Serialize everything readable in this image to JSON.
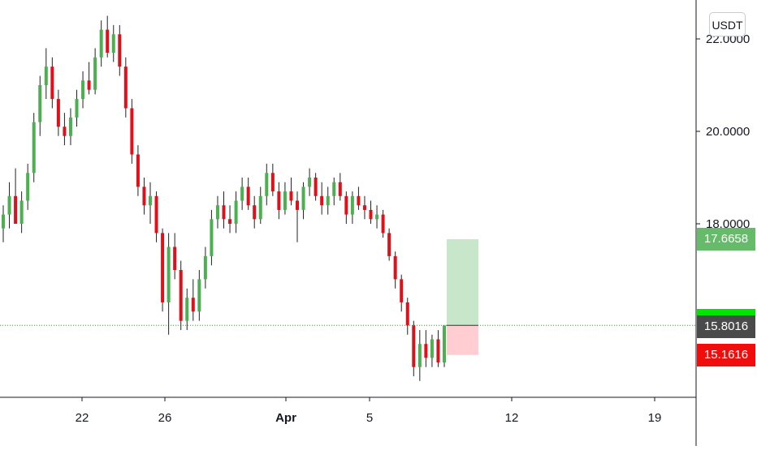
{
  "unit_badge": "USDT",
  "price_labels": {
    "target": "17.6658",
    "current": "15.8016",
    "stop": "15.1616"
  },
  "colors": {
    "up": "#26a69a",
    "down": "#ef5350",
    "up_candle": "#4caf50",
    "down_candle": "#e0101a",
    "target_zone": "#c8e6c9",
    "stop_zone": "#ffcdd2",
    "target_label_bg": "#66bb6a",
    "current_label_bg": "#4a4a4a",
    "stop_label_bg": "#f20d0d",
    "current_flag": "#00e600"
  },
  "chart_data": {
    "type": "candlestick",
    "ylabel": "",
    "y_ticks": [
      "22.0000",
      "20.0000",
      "18.0000"
    ],
    "x_ticks": [
      "22",
      "26",
      "Apr",
      "5",
      "12",
      "19"
    ],
    "current_price_line": 15.8016,
    "position": {
      "entry": 15.8016,
      "target": 17.6658,
      "stop": 15.1616
    },
    "ohlc_approx": [
      [
        17.9,
        18.4,
        17.6,
        18.2
      ],
      [
        18.2,
        18.9,
        17.9,
        18.6
      ],
      [
        18.6,
        19.2,
        18.3,
        18.0
      ],
      [
        18.0,
        18.7,
        17.8,
        18.5
      ],
      [
        18.5,
        19.3,
        18.3,
        19.1
      ],
      [
        19.1,
        20.4,
        18.9,
        20.2
      ],
      [
        20.2,
        21.2,
        19.9,
        21.0
      ],
      [
        21.0,
        21.8,
        20.7,
        21.4
      ],
      [
        21.4,
        21.6,
        20.5,
        20.7
      ],
      [
        20.7,
        20.9,
        19.9,
        20.1
      ],
      [
        20.1,
        20.4,
        19.7,
        19.9
      ],
      [
        19.9,
        20.5,
        19.7,
        20.3
      ],
      [
        20.3,
        20.9,
        20.1,
        20.7
      ],
      [
        20.7,
        21.3,
        20.5,
        21.1
      ],
      [
        21.1,
        21.5,
        20.8,
        20.9
      ],
      [
        20.9,
        21.8,
        20.8,
        21.6
      ],
      [
        21.6,
        22.4,
        21.4,
        22.2
      ],
      [
        22.2,
        22.5,
        21.6,
        21.7
      ],
      [
        21.7,
        22.3,
        21.5,
        22.1
      ],
      [
        22.1,
        22.3,
        21.2,
        21.4
      ],
      [
        21.4,
        21.6,
        20.3,
        20.5
      ],
      [
        20.5,
        20.7,
        19.3,
        19.5
      ],
      [
        19.5,
        19.7,
        18.6,
        18.8
      ],
      [
        18.8,
        19.0,
        18.2,
        18.4
      ],
      [
        18.4,
        18.9,
        18.0,
        18.6
      ],
      [
        18.6,
        18.7,
        17.6,
        17.8
      ],
      [
        17.8,
        17.9,
        16.1,
        16.3
      ],
      [
        16.3,
        17.8,
        15.6,
        17.5
      ],
      [
        17.5,
        17.8,
        16.8,
        17.0
      ],
      [
        17.0,
        17.2,
        15.7,
        15.9
      ],
      [
        15.9,
        16.6,
        15.7,
        16.4
      ],
      [
        16.4,
        16.8,
        15.9,
        16.1
      ],
      [
        16.1,
        17.0,
        15.9,
        16.8
      ],
      [
        16.8,
        17.5,
        16.6,
        17.3
      ],
      [
        17.3,
        18.3,
        17.1,
        18.1
      ],
      [
        18.1,
        18.6,
        17.9,
        18.4
      ],
      [
        18.4,
        18.7,
        17.9,
        18.1
      ],
      [
        18.1,
        18.4,
        17.8,
        18.0
      ],
      [
        18.0,
        18.7,
        17.8,
        18.5
      ],
      [
        18.5,
        19.0,
        18.3,
        18.8
      ],
      [
        18.8,
        19.0,
        18.3,
        18.4
      ],
      [
        18.4,
        18.6,
        17.9,
        18.1
      ],
      [
        18.1,
        18.8,
        18.0,
        18.6
      ],
      [
        18.6,
        19.3,
        18.4,
        19.1
      ],
      [
        19.1,
        19.3,
        18.6,
        18.7
      ],
      [
        18.7,
        18.9,
        18.1,
        18.3
      ],
      [
        18.3,
        18.9,
        18.2,
        18.7
      ],
      [
        18.7,
        19.0,
        18.4,
        18.5
      ],
      [
        18.5,
        18.7,
        17.6,
        18.3
      ],
      [
        18.3,
        18.9,
        18.1,
        18.8
      ],
      [
        18.8,
        19.2,
        18.6,
        19.0
      ],
      [
        19.0,
        19.1,
        18.5,
        18.6
      ],
      [
        18.6,
        18.9,
        18.2,
        18.4
      ],
      [
        18.4,
        18.8,
        18.2,
        18.6
      ],
      [
        18.6,
        19.0,
        18.4,
        18.9
      ],
      [
        18.9,
        19.1,
        18.5,
        18.6
      ],
      [
        18.6,
        18.7,
        18.0,
        18.2
      ],
      [
        18.2,
        18.7,
        18.0,
        18.6
      ],
      [
        18.6,
        18.8,
        18.3,
        18.4
      ],
      [
        18.4,
        18.6,
        18.1,
        18.3
      ],
      [
        18.3,
        18.5,
        18.0,
        18.1
      ],
      [
        18.1,
        18.4,
        17.9,
        18.2
      ],
      [
        18.2,
        18.3,
        17.7,
        17.8
      ],
      [
        17.8,
        17.9,
        17.2,
        17.3
      ],
      [
        17.3,
        17.4,
        16.6,
        16.8
      ],
      [
        16.8,
        16.9,
        16.1,
        16.3
      ],
      [
        16.3,
        16.4,
        15.6,
        15.8
      ],
      [
        15.8,
        15.9,
        14.7,
        14.9
      ],
      [
        14.9,
        15.7,
        14.6,
        15.4
      ],
      [
        15.4,
        15.7,
        14.9,
        15.1
      ],
      [
        15.1,
        15.6,
        14.9,
        15.5
      ],
      [
        15.5,
        15.7,
        14.9,
        15.0
      ],
      [
        15.0,
        15.8,
        14.9,
        15.8
      ]
    ]
  }
}
